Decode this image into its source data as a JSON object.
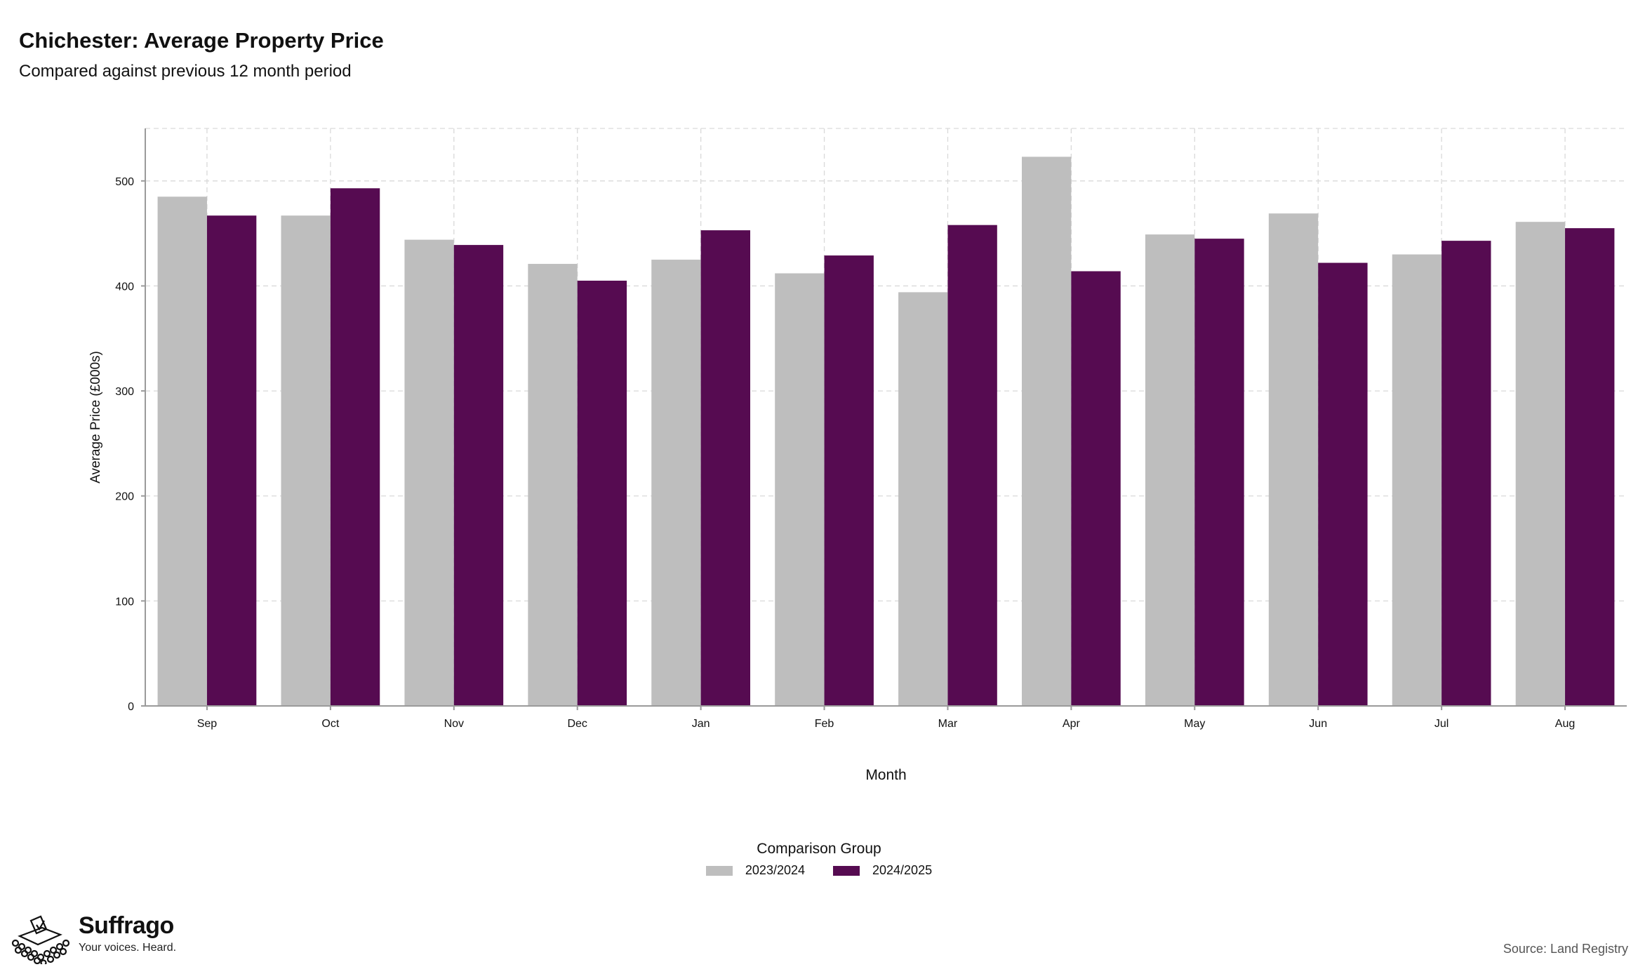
{
  "header": {
    "title": "Chichester: Average Property Price",
    "subtitle": "Compared against previous 12 month period"
  },
  "chart_data": {
    "type": "bar",
    "title": "Chichester: Average Property Price",
    "subtitle": "Compared against previous 12 month period",
    "xlabel": "Month",
    "ylabel": "Average Price (£000s)",
    "ylim": [
      0,
      550
    ],
    "yticks": [
      0,
      100,
      200,
      300,
      400,
      500
    ],
    "grid": true,
    "legend_title": "Comparison Group",
    "legend_position": "bottom",
    "categories": [
      "Sep",
      "Oct",
      "Nov",
      "Dec",
      "Jan",
      "Feb",
      "Mar",
      "Apr",
      "May",
      "Jun",
      "Jul",
      "Aug"
    ],
    "series": [
      {
        "name": "2023/2024",
        "color": "#bebebe",
        "values": [
          485,
          467,
          444,
          421,
          425,
          412,
          394,
          523,
          449,
          469,
          430,
          461
        ]
      },
      {
        "name": "2024/2025",
        "color": "#560b51",
        "values": [
          467,
          493,
          439,
          405,
          453,
          429,
          458,
          414,
          445,
          422,
          443,
          455
        ]
      }
    ]
  },
  "legend": {
    "title": "Comparison Group",
    "items": [
      {
        "label": "2023/2024",
        "color": "#bebebe"
      },
      {
        "label": "2024/2025",
        "color": "#560b51"
      }
    ]
  },
  "brand": {
    "name": "Suffrago",
    "tagline": "Your voices. Heard.",
    "logo_icon": "ballot-box-crowd-icon"
  },
  "footer": {
    "source": "Source: Land Registry"
  }
}
